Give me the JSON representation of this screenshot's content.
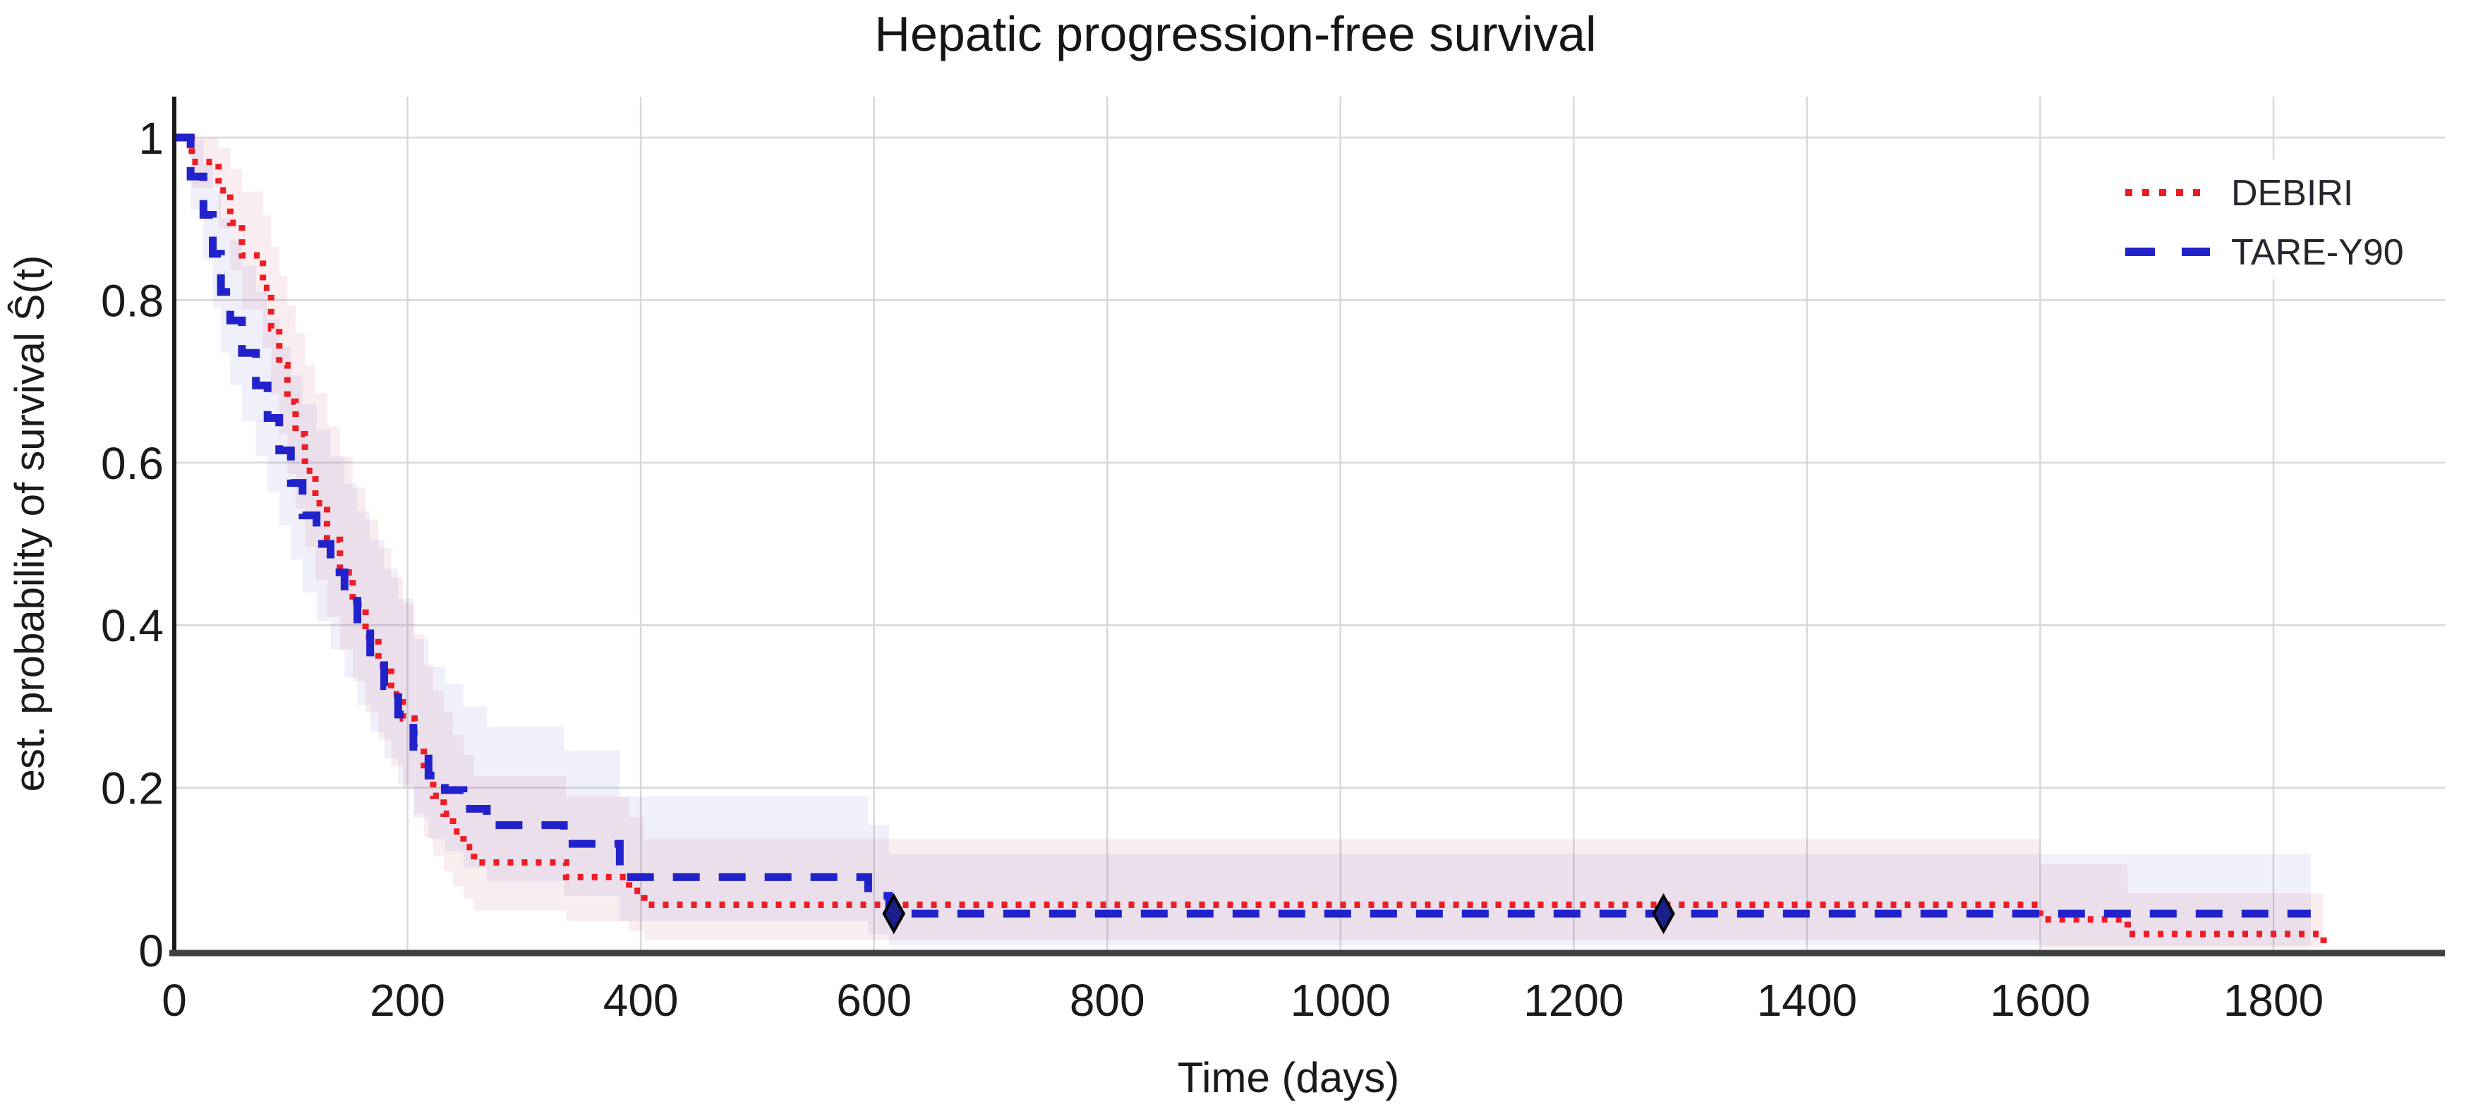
{
  "chart_data": {
    "type": "line",
    "subtype": "kaplan-meier-step",
    "title": "Hepatic progression-free survival",
    "xlabel": "Time (days)",
    "ylabel": "est. probability of survival Ŝ(t)",
    "xlim": [
      0,
      1950
    ],
    "ylim": [
      0,
      1.05
    ],
    "x_ticks": [
      0,
      200,
      400,
      600,
      800,
      1000,
      1200,
      1400,
      1600,
      1800
    ],
    "x_tick_labels": [
      "0",
      "200",
      "400",
      "600",
      "800",
      "1000",
      "1200",
      "1400",
      "1600",
      "1800"
    ],
    "y_ticks": [
      0,
      0.2,
      0.4,
      0.6,
      0.8,
      1
    ],
    "y_tick_labels": [
      "0",
      "0.2",
      "0.4",
      "0.6",
      "0.8",
      "1"
    ],
    "grid": true,
    "legend_position": "top-right",
    "confidence_bands_shown": true,
    "series": [
      {
        "name": "DEBIRI",
        "color": "#ee1c25",
        "band_fill": "rgba(214, 88, 110, 0.11)",
        "line_style": "dotted",
        "end_day": 1843,
        "points": [
          [
            0,
            1.0
          ],
          [
            15,
            0.97
          ],
          [
            38,
            0.935
          ],
          [
            48,
            0.895
          ],
          [
            58,
            0.855
          ],
          [
            76,
            0.815
          ],
          [
            83,
            0.765
          ],
          [
            90,
            0.72
          ],
          [
            97,
            0.675
          ],
          [
            104,
            0.635
          ],
          [
            112,
            0.59
          ],
          [
            121,
            0.55
          ],
          [
            131,
            0.505
          ],
          [
            142,
            0.465
          ],
          [
            153,
            0.425
          ],
          [
            164,
            0.385
          ],
          [
            175,
            0.35
          ],
          [
            186,
            0.315
          ],
          [
            196,
            0.285
          ],
          [
            206,
            0.25
          ],
          [
            214,
            0.217
          ],
          [
            222,
            0.19
          ],
          [
            231,
            0.168
          ],
          [
            239,
            0.146
          ],
          [
            248,
            0.127
          ],
          [
            257,
            0.108
          ],
          [
            336,
            0.09
          ],
          [
            390,
            0.073
          ],
          [
            403,
            0.056
          ],
          [
            1600,
            0.038
          ],
          [
            1675,
            0.02
          ],
          [
            1843,
            0.004
          ]
        ],
        "censor_marks": []
      },
      {
        "name": "TARE-Y90",
        "color": "#2222cc",
        "band_fill": "rgba(104, 104, 214, 0.10)",
        "line_style": "dashed",
        "end_day": 1832,
        "points": [
          [
            0,
            1.0
          ],
          [
            14,
            0.952
          ],
          [
            25,
            0.905
          ],
          [
            33,
            0.857
          ],
          [
            40,
            0.81
          ],
          [
            48,
            0.775
          ],
          [
            58,
            0.735
          ],
          [
            70,
            0.695
          ],
          [
            80,
            0.655
          ],
          [
            90,
            0.615
          ],
          [
            100,
            0.575
          ],
          [
            110,
            0.535
          ],
          [
            122,
            0.5
          ],
          [
            134,
            0.465
          ],
          [
            146,
            0.43
          ],
          [
            157,
            0.395
          ],
          [
            168,
            0.36
          ],
          [
            180,
            0.325
          ],
          [
            192,
            0.29
          ],
          [
            205,
            0.245
          ],
          [
            218,
            0.215
          ],
          [
            232,
            0.197
          ],
          [
            248,
            0.174
          ],
          [
            268,
            0.154
          ],
          [
            334,
            0.131
          ],
          [
            382,
            0.09
          ],
          [
            595,
            0.067
          ],
          [
            613,
            0.045
          ]
        ],
        "censor_marks": [
          [
            617,
            0.045
          ],
          [
            1277,
            0.045
          ]
        ]
      }
    ],
    "censor_mark": {
      "shape": "diamond",
      "fill": "#1b1f8a",
      "stroke": "#000000"
    }
  },
  "styles": {
    "background": "#ffffff",
    "grid_color": "#d8d8d8",
    "x_axis_color": "#3f3f3f",
    "y_axis_color": "#1a1a1a",
    "tick_label_color": "#1a1a1a",
    "title_color": "#161616"
  }
}
